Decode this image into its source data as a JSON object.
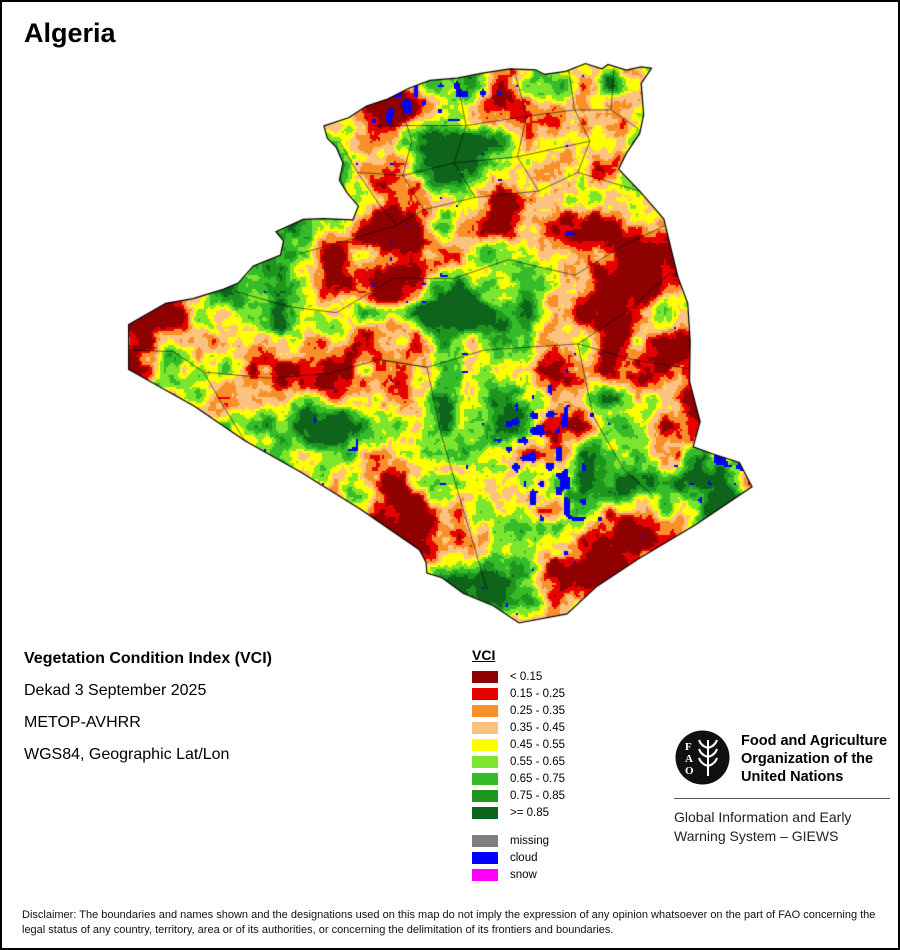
{
  "page": {
    "title": "Algeria",
    "background": "#ffffff",
    "border_color": "#000000"
  },
  "info": {
    "line1": "Vegetation Condition Index (VCI)",
    "line2": "Dekad 3 September 2025",
    "line3": "METOP-AVHRR",
    "line4": "WGS84, Geographic Lat/Lon"
  },
  "legend": {
    "title": "VCI",
    "classes": [
      {
        "label": "< 0.15",
        "color": "#8f0000"
      },
      {
        "label": "0.15 - 0.25",
        "color": "#e60000"
      },
      {
        "label": "0.25 - 0.35",
        "color": "#f98f28"
      },
      {
        "label": "0.35 - 0.45",
        "color": "#fcc380"
      },
      {
        "label": "0.45 - 0.55",
        "color": "#ffff00"
      },
      {
        "label": "0.55 - 0.65",
        "color": "#7ce52e"
      },
      {
        "label": "0.65 - 0.75",
        "color": "#36bb2a"
      },
      {
        "label": "0.75 - 0.85",
        "color": "#1e961e"
      },
      {
        "label": ">= 0.85",
        "color": "#0d641a"
      }
    ],
    "extras": [
      {
        "label": "missing",
        "color": "#7f7f7f"
      },
      {
        "label": "cloud",
        "color": "#0000fe"
      },
      {
        "label": "snow",
        "color": "#ff00ff"
      }
    ]
  },
  "footer": {
    "fao_letters": [
      "F",
      "A",
      "O"
    ],
    "org_name_lines": [
      "Food and Agriculture",
      "Organization of the",
      "United Nations"
    ],
    "giews_lines": [
      "Global Information and Early",
      "Warning System – GIEWS"
    ]
  },
  "disclaimer": "Disclaimer: The boundaries and names shown and the designations used on this map do not imply the expression of any opinion whatsoever on the part of FAO concerning the legal status of any country, territory, area or of its authorities, or concerning the delimitation of its frontiers and boundaries.",
  "map": {
    "projection": {
      "lon_min": -8.9,
      "lon_max": 12.3,
      "lat_min": 18.7,
      "lat_max": 37.3
    },
    "outline_lonlat": [
      [
        -2.21,
        35.09
      ],
      [
        -1.4,
        35.35
      ],
      [
        -0.8,
        35.73
      ],
      [
        -0.1,
        35.95
      ],
      [
        0.6,
        36.3
      ],
      [
        1.3,
        36.55
      ],
      [
        2.2,
        36.62
      ],
      [
        3.04,
        36.78
      ],
      [
        3.95,
        36.92
      ],
      [
        4.8,
        36.89
      ],
      [
        5.1,
        36.74
      ],
      [
        5.8,
        36.84
      ],
      [
        6.45,
        37.09
      ],
      [
        7.0,
        36.92
      ],
      [
        7.2,
        37.06
      ],
      [
        7.8,
        36.88
      ],
      [
        8.3,
        36.98
      ],
      [
        8.64,
        36.94
      ],
      [
        8.3,
        36.45
      ],
      [
        8.38,
        35.45
      ],
      [
        8.25,
        34.85
      ],
      [
        7.8,
        34.2
      ],
      [
        7.55,
        33.7
      ],
      [
        8.25,
        33.0
      ],
      [
        9.05,
        32.1
      ],
      [
        9.3,
        31.1
      ],
      [
        9.52,
        30.23
      ],
      [
        9.84,
        29.4
      ],
      [
        9.92,
        28.2
      ],
      [
        9.9,
        26.9
      ],
      [
        10.25,
        25.6
      ],
      [
        10.02,
        24.8
      ],
      [
        10.7,
        24.56
      ],
      [
        11.55,
        24.3
      ],
      [
        11.97,
        23.52
      ],
      [
        10.1,
        22.3
      ],
      [
        8.2,
        21.2
      ],
      [
        6.8,
        20.3
      ],
      [
        5.84,
        19.44
      ],
      [
        4.25,
        19.15
      ],
      [
        3.4,
        19.7
      ],
      [
        2.4,
        20.1
      ],
      [
        1.7,
        20.6
      ],
      [
        1.2,
        20.75
      ],
      [
        1.17,
        21.1
      ],
      [
        0.95,
        21.5
      ],
      [
        -1.0,
        22.8
      ],
      [
        -3.0,
        24.0
      ],
      [
        -4.83,
        24.99
      ],
      [
        -6.5,
        26.1
      ],
      [
        -8.68,
        27.28
      ],
      [
        -8.68,
        28.72
      ],
      [
        -7.45,
        29.4
      ],
      [
        -6.55,
        29.55
      ],
      [
        -5.55,
        29.85
      ],
      [
        -5.05,
        30.05
      ],
      [
        -4.55,
        30.6
      ],
      [
        -3.65,
        30.95
      ],
      [
        -3.55,
        31.4
      ],
      [
        -3.8,
        31.7
      ],
      [
        -2.9,
        32.09
      ],
      [
        -2.25,
        32.12
      ],
      [
        -1.25,
        32.08
      ],
      [
        -1.07,
        32.52
      ],
      [
        -1.45,
        32.95
      ],
      [
        -1.7,
        33.35
      ],
      [
        -1.58,
        33.9
      ],
      [
        -1.8,
        34.4
      ],
      [
        -2.1,
        34.7
      ]
    ],
    "internal_boundaries": [
      [
        [
          -8.68,
          27.9
        ],
        [
          -7.2,
          27.85
        ],
        [
          -6.2,
          27.2
        ],
        [
          -5.6,
          26.2
        ],
        [
          -4.83,
          24.99
        ]
      ],
      [
        [
          -6.2,
          27.2
        ],
        [
          -4.0,
          27.0
        ],
        [
          -2.0,
          27.15
        ],
        [
          -0.4,
          27.6
        ],
        [
          1.2,
          27.35
        ]
      ],
      [
        [
          1.2,
          27.35
        ],
        [
          1.7,
          25.1
        ],
        [
          2.4,
          22.8
        ],
        [
          3.2,
          20.2
        ]
      ],
      [
        [
          -0.4,
          27.6
        ],
        [
          1.2,
          27.35
        ],
        [
          3.1,
          27.9
        ],
        [
          6.2,
          28.1
        ],
        [
          8.0,
          27.6
        ],
        [
          9.9,
          27.3
        ]
      ],
      [
        [
          6.2,
          28.1
        ],
        [
          6.7,
          25.8
        ],
        [
          7.7,
          24.1
        ],
        [
          8.6,
          23.3
        ]
      ],
      [
        [
          6.2,
          28.1
        ],
        [
          7.9,
          29.2
        ],
        [
          9.3,
          30.4
        ]
      ],
      [
        [
          -5.2,
          29.8
        ],
        [
          -3.4,
          29.3
        ],
        [
          -1.8,
          29.1
        ],
        [
          0.1,
          30.2
        ],
        [
          2.1,
          30.2
        ],
        [
          3.9,
          30.8
        ],
        [
          6.1,
          30.3
        ],
        [
          7.6,
          31.2
        ],
        [
          9.1,
          31.9
        ]
      ],
      [
        [
          -1.7,
          34.6
        ],
        [
          -1.1,
          33.6
        ],
        [
          -0.4,
          32.6
        ],
        [
          0.2,
          31.9
        ]
      ],
      [
        [
          0.3,
          35.9
        ],
        [
          0.7,
          34.6
        ],
        [
          0.4,
          33.5
        ],
        [
          1.1,
          32.4
        ]
      ],
      [
        [
          2.2,
          36.55
        ],
        [
          2.5,
          35.1
        ],
        [
          2.1,
          33.9
        ],
        [
          2.8,
          32.8
        ]
      ],
      [
        [
          4.1,
          36.85
        ],
        [
          4.5,
          35.4
        ],
        [
          4.2,
          34.1
        ],
        [
          4.9,
          33.0
        ]
      ],
      [
        [
          5.9,
          36.85
        ],
        [
          6.1,
          35.6
        ],
        [
          6.6,
          34.6
        ],
        [
          6.2,
          33.6
        ]
      ],
      [
        [
          7.4,
          36.95
        ],
        [
          7.3,
          35.6
        ],
        [
          8.2,
          35.0
        ]
      ],
      [
        [
          -1.1,
          33.6
        ],
        [
          0.4,
          33.5
        ],
        [
          2.1,
          33.9
        ],
        [
          4.2,
          34.1
        ],
        [
          6.6,
          34.6
        ]
      ],
      [
        [
          -0.5,
          35.1
        ],
        [
          2.5,
          35.1
        ],
        [
          4.5,
          35.4
        ],
        [
          6.1,
          35.6
        ],
        [
          7.3,
          35.6
        ]
      ],
      [
        [
          -3.0,
          31.0
        ],
        [
          -1.5,
          31.4
        ],
        [
          0.2,
          31.9
        ],
        [
          1.1,
          32.4
        ],
        [
          2.8,
          32.8
        ],
        [
          4.9,
          33.0
        ],
        [
          6.2,
          33.6
        ],
        [
          8.25,
          33.0
        ]
      ]
    ]
  }
}
